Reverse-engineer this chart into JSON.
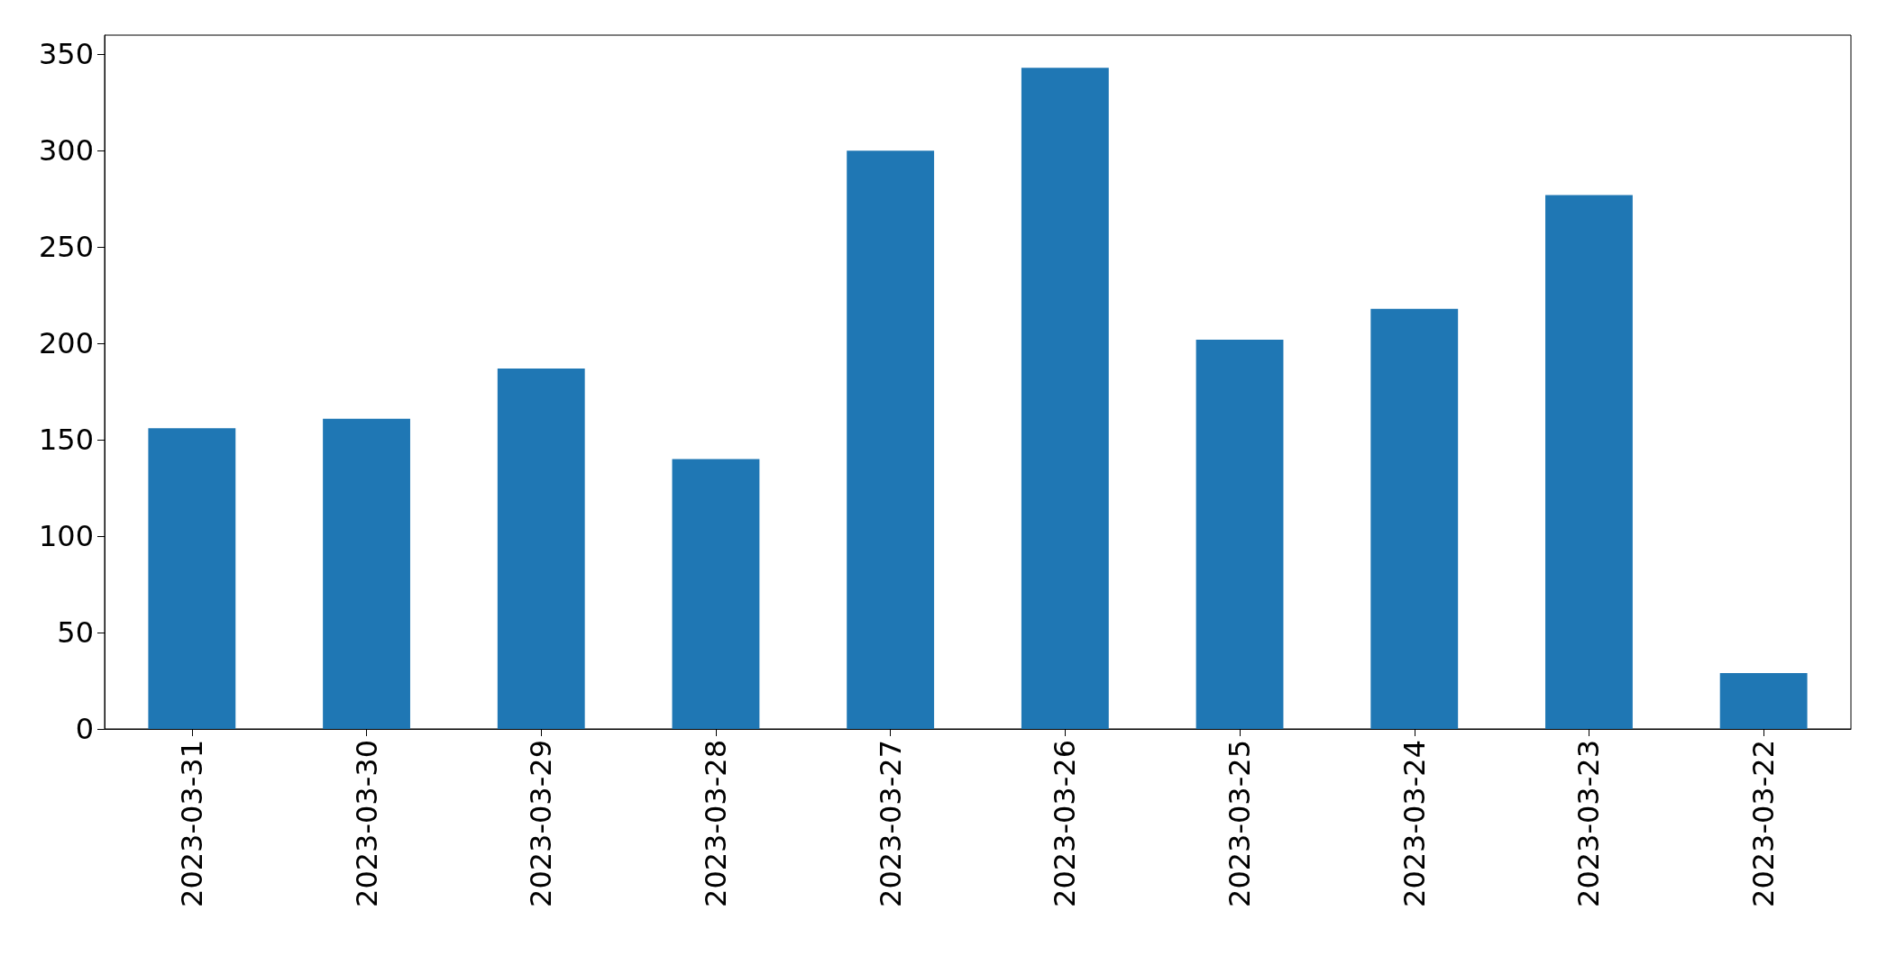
{
  "chart_data": {
    "type": "bar",
    "categories": [
      "2023-03-31",
      "2023-03-30",
      "2023-03-29",
      "2023-03-28",
      "2023-03-27",
      "2023-03-26",
      "2023-03-25",
      "2023-03-24",
      "2023-03-23",
      "2023-03-22"
    ],
    "values": [
      156,
      161,
      187,
      140,
      300,
      343,
      202,
      218,
      277,
      29
    ],
    "color": "#1f77b4",
    "ylim": [
      0,
      360
    ],
    "yticks": [
      0,
      50,
      100,
      150,
      200,
      250,
      300,
      350
    ],
    "grid": false
  }
}
